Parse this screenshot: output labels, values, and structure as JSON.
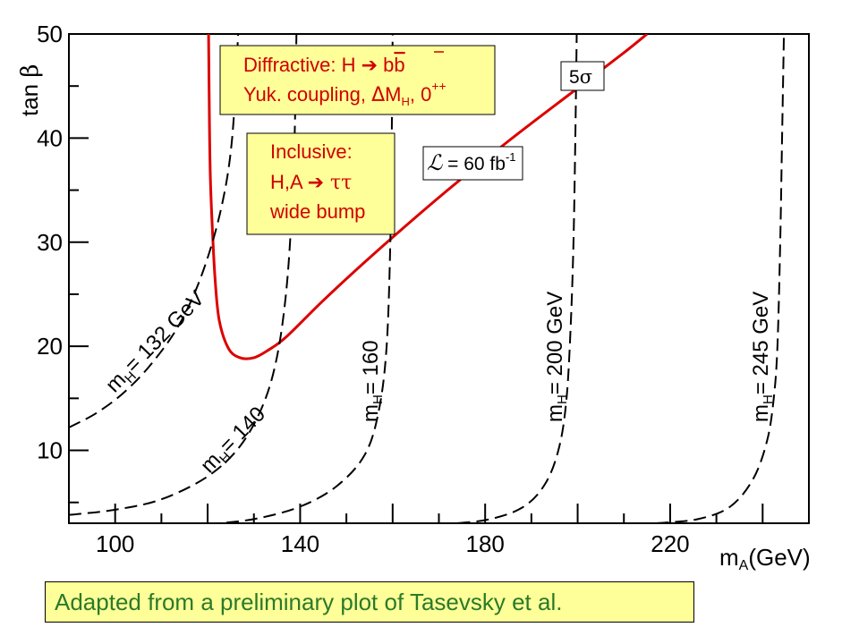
{
  "chart_data": {
    "type": "line",
    "xlabel": "m_A(GeV)",
    "ylabel": "tan β",
    "xlim": [
      90,
      250
    ],
    "ylim": [
      3,
      50
    ],
    "xticks": [
      100,
      140,
      180,
      220
    ],
    "yticks": [
      10,
      20,
      30,
      40,
      50
    ],
    "grid": false,
    "series": [
      {
        "name": "5σ",
        "style": "solid",
        "color": "#dd0000",
        "points": [
          [
            120.2,
            50
          ],
          [
            120.4,
            41
          ],
          [
            120.6,
            36
          ],
          [
            121.0,
            31.5
          ],
          [
            121.6,
            26.5
          ],
          [
            122.5,
            22.5
          ],
          [
            124.5,
            19.8
          ],
          [
            127,
            18.9
          ],
          [
            130,
            18.9
          ],
          [
            133,
            19.6
          ],
          [
            137,
            20.9
          ],
          [
            145,
            24.4
          ],
          [
            155,
            28.5
          ],
          [
            170,
            34.3
          ],
          [
            185,
            39.7
          ],
          [
            200,
            44.8
          ],
          [
            210,
            48.2
          ],
          [
            215,
            50
          ]
        ]
      },
      {
        "label": "m_H= 132 GeV",
        "style": "dashed",
        "points": [
          [
            90,
            12.2
          ],
          [
            96,
            13.6
          ],
          [
            102,
            15.6
          ],
          [
            108,
            18.4
          ],
          [
            114,
            22.2
          ],
          [
            119,
            27.2
          ],
          [
            123,
            33.4
          ],
          [
            125.3,
            40
          ],
          [
            126.6,
            50
          ]
        ]
      },
      {
        "label": "m_H= 140",
        "style": "dashed",
        "points": [
          [
            90,
            3.8
          ],
          [
            100,
            4.3
          ],
          [
            110,
            5.3
          ],
          [
            120,
            7.5
          ],
          [
            127,
            10.4
          ],
          [
            132,
            14.4
          ],
          [
            135,
            19
          ],
          [
            137,
            25.3
          ],
          [
            138.2,
            33
          ],
          [
            138.8,
            40
          ],
          [
            139.2,
            50
          ]
        ]
      },
      {
        "label": "m_H= 160",
        "style": "dashed",
        "points": [
          [
            120,
            2.9
          ],
          [
            130,
            3.4
          ],
          [
            140,
            4.6
          ],
          [
            148,
            6.6
          ],
          [
            154,
            9.6
          ],
          [
            157,
            13.8
          ],
          [
            158.7,
            20
          ],
          [
            159.5,
            30
          ],
          [
            159.8,
            40
          ],
          [
            160,
            50
          ]
        ]
      },
      {
        "label": "m_H= 200 GeV",
        "style": "dashed",
        "points": [
          [
            170,
            2.9
          ],
          [
            180,
            3.3
          ],
          [
            188,
            4.5
          ],
          [
            193,
            6.8
          ],
          [
            196,
            10.3
          ],
          [
            197.6,
            15
          ],
          [
            198.5,
            22
          ],
          [
            199.1,
            30
          ],
          [
            199.5,
            40
          ],
          [
            199.8,
            50
          ]
        ]
      },
      {
        "label": "m_H= 245 GeV",
        "style": "dashed",
        "points": [
          [
            217,
            3
          ],
          [
            226,
            3.4
          ],
          [
            233,
            4.6
          ],
          [
            238,
            7.3
          ],
          [
            241,
            11
          ],
          [
            242.4,
            15
          ],
          [
            243.2,
            20
          ],
          [
            243.8,
            30
          ],
          [
            244.2,
            40
          ],
          [
            244.6,
            50
          ]
        ]
      }
    ],
    "annotations": {
      "box_diffractive": {
        "line1": "Diffractive:   H → bb",
        "line2": "Yuk. coupling, ΔM",
        "line2_sub": "H",
        "line2_tail": ", 0",
        "line2_sup": "++"
      },
      "box_inclusive": {
        "line1": "Inclusive:",
        "line2": "H,A → ττ",
        "line3": "wide bump"
      },
      "luminosity": {
        "symbol": "ℒ",
        "text": " = 60 fb",
        "sup": "-1"
      },
      "significance": "5σ"
    }
  },
  "caption": "Adapted from a preliminary plot of Tasevsky et al.",
  "colors": {
    "curve": "#dd0000",
    "box_fill": "#ffff99",
    "box_text": "#d00000",
    "caption_text": "#2a7a2a"
  }
}
